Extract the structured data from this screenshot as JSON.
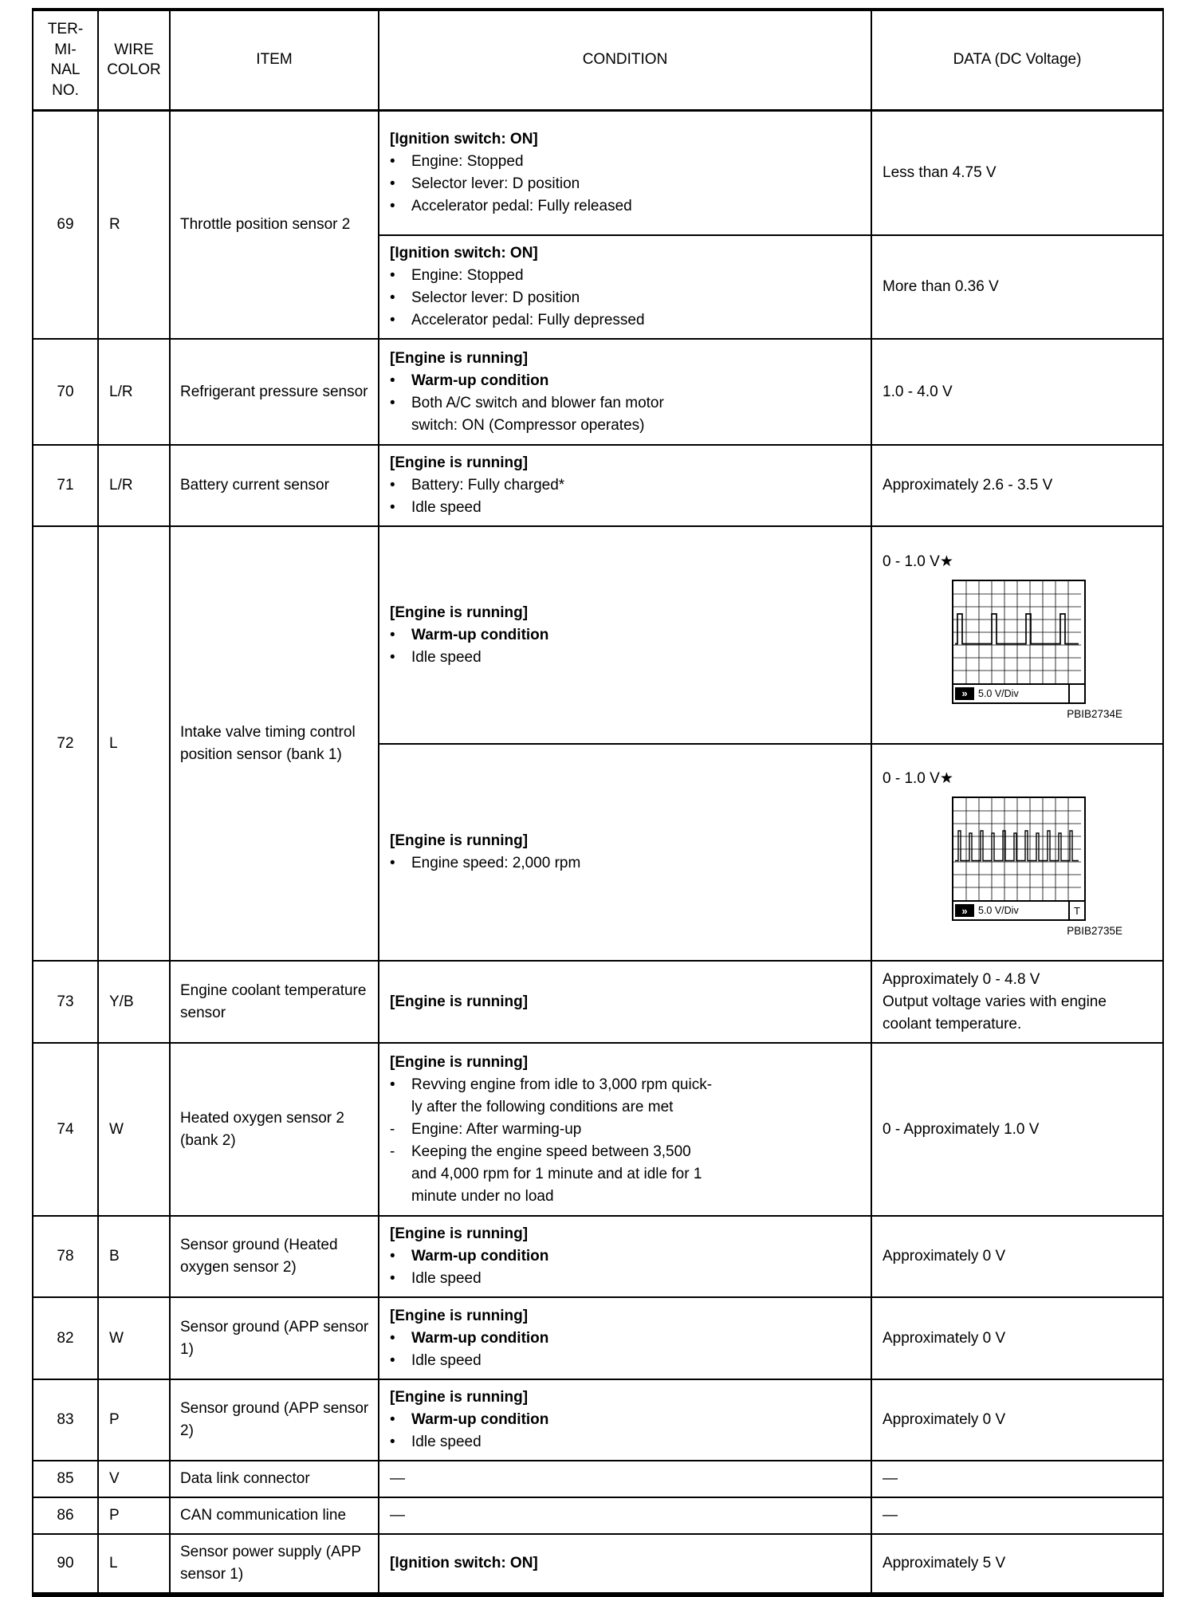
{
  "page": {
    "background": "#ffffff",
    "ink": "#000000"
  },
  "table": {
    "columns": [
      "TER-\nMI-\nNAL\nNO.",
      "WIRE\nCOLOR",
      "ITEM",
      "CONDITION",
      "DATA (DC Voltage)"
    ],
    "rows": [
      {
        "terminal": "69",
        "wire": "R",
        "item": "Throttle position sensor 2",
        "subs": [
          {
            "condition": [
              [
                "h",
                "[Ignition switch: ON]"
              ],
              [
                "b",
                "Engine: Stopped"
              ],
              [
                "b",
                "Selector lever: D position"
              ],
              [
                "b",
                "Accelerator pedal: Fully released"
              ]
            ],
            "data": {
              "lines": [
                "Less than 4.75 V"
              ]
            }
          },
          {
            "condition": [
              [
                "h",
                "[Ignition switch: ON]"
              ],
              [
                "b",
                "Engine: Stopped"
              ],
              [
                "b",
                "Selector lever: D position"
              ],
              [
                "b",
                "Accelerator pedal: Fully depressed"
              ]
            ],
            "data": {
              "lines": [
                "More than 0.36 V"
              ]
            }
          }
        ]
      },
      {
        "terminal": "70",
        "wire": "L/R",
        "item": "Refrigerant pressure sensor",
        "subs": [
          {
            "condition": [
              [
                "h",
                "[Engine is running]"
              ],
              [
                "bb",
                "Warm-up condition"
              ],
              [
                "b",
                "Both A/C switch and blower fan motor"
              ],
              [
                "c",
                "switch: ON (Compressor operates)"
              ]
            ],
            "data": {
              "lines": [
                "1.0 - 4.0 V"
              ]
            }
          }
        ]
      },
      {
        "terminal": "71",
        "wire": "L/R",
        "item": "Battery current sensor",
        "subs": [
          {
            "condition": [
              [
                "h",
                "[Engine is running]"
              ],
              [
                "b",
                "Battery: Fully charged*"
              ],
              [
                "b",
                "Idle speed"
              ]
            ],
            "data": {
              "lines": [
                "Approximately 2.6 - 3.5 V"
              ]
            }
          }
        ]
      },
      {
        "terminal": "72",
        "wire": "L",
        "item": "Intake valve timing control position sensor (bank 1)",
        "subs": [
          {
            "condition": [
              [
                "h",
                "[Engine is running]"
              ],
              [
                "bb",
                "Warm-up condition"
              ],
              [
                "b",
                "Idle speed"
              ]
            ],
            "data": {
              "lines": [
                "0 - 1.0 V★"
              ],
              "scope": {
                "style": "wide",
                "pulses": 4,
                "vdiv": "5.0 V/Div",
                "corner": "",
                "caption": "PBIB2734E"
              }
            }
          },
          {
            "condition": [
              [
                "h",
                "[Engine is running]"
              ],
              [
                "b",
                "Engine speed: 2,000 rpm"
              ]
            ],
            "data": {
              "lines": [
                "0 - 1.0 V★"
              ],
              "scope": {
                "style": "narrow",
                "pulses": 11,
                "vdiv": "5.0 V/Div",
                "corner": "T",
                "caption": "PBIB2735E"
              }
            }
          }
        ]
      },
      {
        "terminal": "73",
        "wire": "Y/B",
        "item": "Engine coolant temperature sensor",
        "subs": [
          {
            "condition": [
              [
                "h",
                "[Engine is running]"
              ]
            ],
            "data": {
              "lines": [
                "Approximately 0 - 4.8 V",
                "Output voltage varies with engine",
                "coolant temperature."
              ]
            }
          }
        ]
      },
      {
        "terminal": "74",
        "wire": "W",
        "item": "Heated oxygen sensor 2 (bank 2)",
        "subs": [
          {
            "condition": [
              [
                "h",
                "[Engine is running]"
              ],
              [
                "b",
                "Revving engine from idle to 3,000 rpm quick-"
              ],
              [
                "c",
                "ly after the following conditions are met"
              ],
              [
                "d",
                "Engine: After warming-up"
              ],
              [
                "d",
                "Keeping the engine speed between 3,500"
              ],
              [
                "c",
                "and 4,000 rpm for 1 minute and at idle for 1"
              ],
              [
                "c",
                "minute under no load"
              ]
            ],
            "data": {
              "lines": [
                "0 - Approximately 1.0 V"
              ]
            }
          }
        ]
      },
      {
        "terminal": "78",
        "wire": "B",
        "item": "Sensor ground (Heated oxygen sensor 2)",
        "subs": [
          {
            "condition": [
              [
                "h",
                "[Engine is running]"
              ],
              [
                "bb",
                "Warm-up condition"
              ],
              [
                "b",
                "Idle speed"
              ]
            ],
            "data": {
              "lines": [
                "Approximately 0 V"
              ]
            }
          }
        ]
      },
      {
        "terminal": "82",
        "wire": "W",
        "item": "Sensor ground (APP sensor 1)",
        "subs": [
          {
            "condition": [
              [
                "h",
                "[Engine is running]"
              ],
              [
                "bb",
                "Warm-up condition"
              ],
              [
                "b",
                "Idle speed"
              ]
            ],
            "data": {
              "lines": [
                "Approximately 0 V"
              ]
            }
          }
        ]
      },
      {
        "terminal": "83",
        "wire": "P",
        "item": "Sensor ground (APP sensor 2)",
        "subs": [
          {
            "condition": [
              [
                "h",
                "[Engine is running]"
              ],
              [
                "bb",
                "Warm-up condition"
              ],
              [
                "b",
                "Idle speed"
              ]
            ],
            "data": {
              "lines": [
                "Approximately 0 V"
              ]
            }
          }
        ]
      },
      {
        "terminal": "85",
        "wire": "V",
        "item": "Data link connector",
        "subs": [
          {
            "condition": [
              [
                "em",
                "—"
              ]
            ],
            "data": {
              "lines": [
                "—"
              ]
            }
          }
        ]
      },
      {
        "terminal": "86",
        "wire": "P",
        "item": "CAN communication line",
        "subs": [
          {
            "condition": [
              [
                "em",
                "—"
              ]
            ],
            "data": {
              "lines": [
                "—"
              ]
            }
          }
        ]
      },
      {
        "terminal": "90",
        "wire": "L",
        "item": "Sensor power supply (APP sensor 1)",
        "subs": [
          {
            "condition": [
              [
                "h",
                "[Ignition switch: ON]"
              ]
            ],
            "data": {
              "lines": [
                "Approximately 5 V"
              ]
            }
          }
        ]
      }
    ]
  }
}
